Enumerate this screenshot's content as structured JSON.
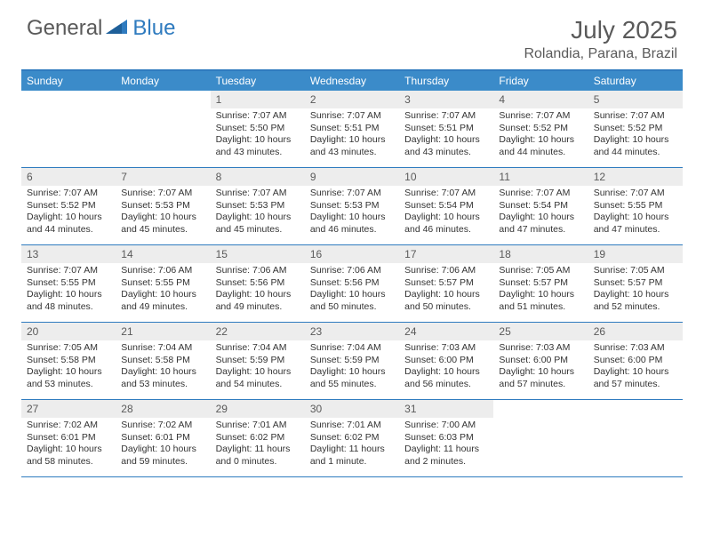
{
  "logo": {
    "general": "General",
    "blue": "Blue"
  },
  "title": "July 2025",
  "location": "Rolandia, Parana, Brazil",
  "colors": {
    "header_bg": "#3b8bc9",
    "border": "#2f7bbf",
    "daynum_bg": "#ededed",
    "text_muted": "#5a5a5a"
  },
  "day_headers": [
    "Sunday",
    "Monday",
    "Tuesday",
    "Wednesday",
    "Thursday",
    "Friday",
    "Saturday"
  ],
  "weeks": [
    [
      null,
      null,
      {
        "n": "1",
        "sr": "7:07 AM",
        "ss": "5:50 PM",
        "dl": "10 hours and 43 minutes."
      },
      {
        "n": "2",
        "sr": "7:07 AM",
        "ss": "5:51 PM",
        "dl": "10 hours and 43 minutes."
      },
      {
        "n": "3",
        "sr": "7:07 AM",
        "ss": "5:51 PM",
        "dl": "10 hours and 43 minutes."
      },
      {
        "n": "4",
        "sr": "7:07 AM",
        "ss": "5:52 PM",
        "dl": "10 hours and 44 minutes."
      },
      {
        "n": "5",
        "sr": "7:07 AM",
        "ss": "5:52 PM",
        "dl": "10 hours and 44 minutes."
      }
    ],
    [
      {
        "n": "6",
        "sr": "7:07 AM",
        "ss": "5:52 PM",
        "dl": "10 hours and 44 minutes."
      },
      {
        "n": "7",
        "sr": "7:07 AM",
        "ss": "5:53 PM",
        "dl": "10 hours and 45 minutes."
      },
      {
        "n": "8",
        "sr": "7:07 AM",
        "ss": "5:53 PM",
        "dl": "10 hours and 45 minutes."
      },
      {
        "n": "9",
        "sr": "7:07 AM",
        "ss": "5:53 PM",
        "dl": "10 hours and 46 minutes."
      },
      {
        "n": "10",
        "sr": "7:07 AM",
        "ss": "5:54 PM",
        "dl": "10 hours and 46 minutes."
      },
      {
        "n": "11",
        "sr": "7:07 AM",
        "ss": "5:54 PM",
        "dl": "10 hours and 47 minutes."
      },
      {
        "n": "12",
        "sr": "7:07 AM",
        "ss": "5:55 PM",
        "dl": "10 hours and 47 minutes."
      }
    ],
    [
      {
        "n": "13",
        "sr": "7:07 AM",
        "ss": "5:55 PM",
        "dl": "10 hours and 48 minutes."
      },
      {
        "n": "14",
        "sr": "7:06 AM",
        "ss": "5:55 PM",
        "dl": "10 hours and 49 minutes."
      },
      {
        "n": "15",
        "sr": "7:06 AM",
        "ss": "5:56 PM",
        "dl": "10 hours and 49 minutes."
      },
      {
        "n": "16",
        "sr": "7:06 AM",
        "ss": "5:56 PM",
        "dl": "10 hours and 50 minutes."
      },
      {
        "n": "17",
        "sr": "7:06 AM",
        "ss": "5:57 PM",
        "dl": "10 hours and 50 minutes."
      },
      {
        "n": "18",
        "sr": "7:05 AM",
        "ss": "5:57 PM",
        "dl": "10 hours and 51 minutes."
      },
      {
        "n": "19",
        "sr": "7:05 AM",
        "ss": "5:57 PM",
        "dl": "10 hours and 52 minutes."
      }
    ],
    [
      {
        "n": "20",
        "sr": "7:05 AM",
        "ss": "5:58 PM",
        "dl": "10 hours and 53 minutes."
      },
      {
        "n": "21",
        "sr": "7:04 AM",
        "ss": "5:58 PM",
        "dl": "10 hours and 53 minutes."
      },
      {
        "n": "22",
        "sr": "7:04 AM",
        "ss": "5:59 PM",
        "dl": "10 hours and 54 minutes."
      },
      {
        "n": "23",
        "sr": "7:04 AM",
        "ss": "5:59 PM",
        "dl": "10 hours and 55 minutes."
      },
      {
        "n": "24",
        "sr": "7:03 AM",
        "ss": "6:00 PM",
        "dl": "10 hours and 56 minutes."
      },
      {
        "n": "25",
        "sr": "7:03 AM",
        "ss": "6:00 PM",
        "dl": "10 hours and 57 minutes."
      },
      {
        "n": "26",
        "sr": "7:03 AM",
        "ss": "6:00 PM",
        "dl": "10 hours and 57 minutes."
      }
    ],
    [
      {
        "n": "27",
        "sr": "7:02 AM",
        "ss": "6:01 PM",
        "dl": "10 hours and 58 minutes."
      },
      {
        "n": "28",
        "sr": "7:02 AM",
        "ss": "6:01 PM",
        "dl": "10 hours and 59 minutes."
      },
      {
        "n": "29",
        "sr": "7:01 AM",
        "ss": "6:02 PM",
        "dl": "11 hours and 0 minutes."
      },
      {
        "n": "30",
        "sr": "7:01 AM",
        "ss": "6:02 PM",
        "dl": "11 hours and 1 minute."
      },
      {
        "n": "31",
        "sr": "7:00 AM",
        "ss": "6:03 PM",
        "dl": "11 hours and 2 minutes."
      },
      null,
      null
    ]
  ],
  "labels": {
    "sunrise": "Sunrise:",
    "sunset": "Sunset:",
    "daylight": "Daylight:"
  }
}
